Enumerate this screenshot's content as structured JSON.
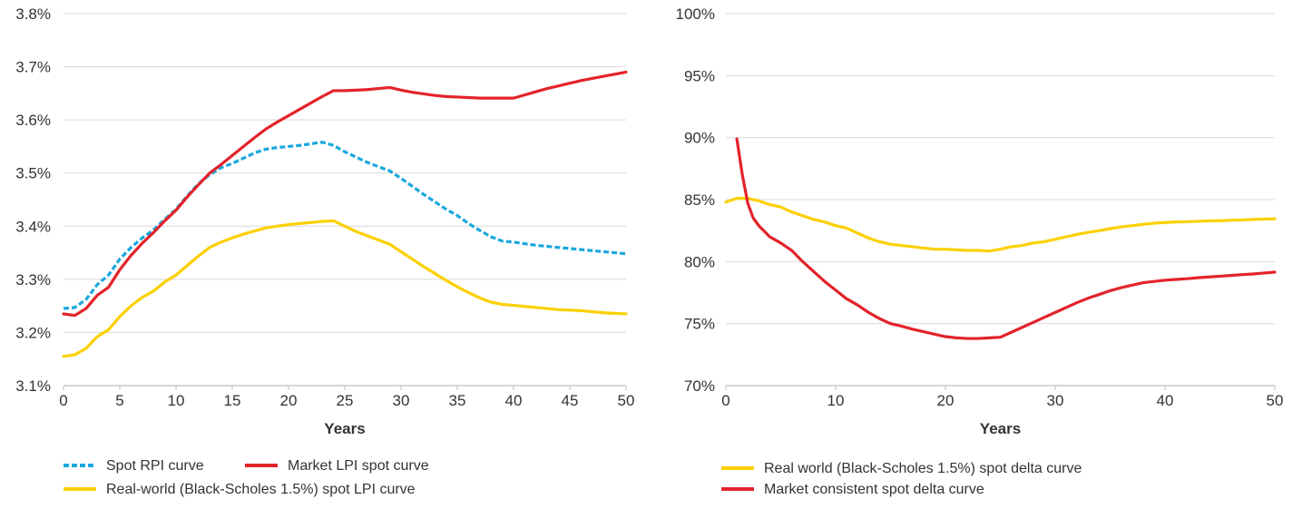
{
  "colors": {
    "rpi": "#1aa7dd",
    "market": "#e3232a",
    "realworld": "#fcd000",
    "grid": "#d9d9d9",
    "axis": "#bfbfbf",
    "text": "#333333"
  },
  "chart_data": [
    {
      "type": "line",
      "xlabel": "Years",
      "ylabel": "",
      "xlim": [
        0,
        50
      ],
      "ylim": [
        3.1,
        3.8
      ],
      "x_ticks": [
        0,
        5,
        10,
        15,
        20,
        25,
        30,
        35,
        40,
        45,
        50
      ],
      "x_tick_labels": [
        "0",
        "5",
        "10",
        "15",
        "20",
        "25",
        "30",
        "35",
        "40",
        "45",
        "50"
      ],
      "y_ticks": [
        3.1,
        3.2,
        3.3,
        3.4,
        3.5,
        3.6,
        3.7,
        3.8
      ],
      "y_tick_labels": [
        "3.1%",
        "3.2%",
        "3.3%",
        "3.4%",
        "3.5%",
        "3.6%",
        "3.7%",
        "3.8%"
      ],
      "grid": "horizontal",
      "legend": "bottom-left",
      "series": [
        {
          "name": "Spot RPI curve",
          "color": "#1aa7dd",
          "style": "dashed",
          "x": [
            0,
            1,
            2,
            3,
            4,
            5,
            6,
            7,
            8,
            9,
            10,
            11,
            12,
            13,
            14,
            15,
            16,
            17,
            18,
            19,
            20,
            21,
            22,
            23,
            24,
            25,
            26,
            27,
            28,
            29,
            30,
            31,
            32,
            33,
            34,
            35,
            36,
            37,
            38,
            39,
            40,
            41,
            42,
            43,
            44,
            45,
            46,
            47,
            48,
            49,
            50
          ],
          "values": [
            3.245,
            3.247,
            3.262,
            3.29,
            3.308,
            3.338,
            3.36,
            3.378,
            3.393,
            3.413,
            3.432,
            3.457,
            3.48,
            3.497,
            3.51,
            3.518,
            3.528,
            3.538,
            3.545,
            3.548,
            3.55,
            3.552,
            3.555,
            3.558,
            3.552,
            3.54,
            3.53,
            3.52,
            3.512,
            3.504,
            3.49,
            3.475,
            3.46,
            3.446,
            3.432,
            3.42,
            3.405,
            3.392,
            3.38,
            3.372,
            3.37,
            3.367,
            3.364,
            3.362,
            3.36,
            3.358,
            3.356,
            3.354,
            3.352,
            3.35,
            3.348
          ]
        },
        {
          "name": "Market LPI spot curve",
          "color": "#e3232a",
          "style": "solid",
          "x": [
            0,
            1,
            2,
            3,
            4,
            5,
            6,
            7,
            8,
            9,
            10,
            11,
            12,
            13,
            14,
            15,
            16,
            17,
            18,
            19,
            20,
            21,
            22,
            23,
            24,
            25,
            26,
            27,
            28,
            29,
            30,
            31,
            32,
            33,
            34,
            35,
            36,
            37,
            38,
            39,
            40,
            41,
            42,
            43,
            44,
            45,
            46,
            47,
            48,
            49,
            50
          ],
          "values": [
            3.235,
            3.232,
            3.245,
            3.27,
            3.285,
            3.318,
            3.345,
            3.368,
            3.388,
            3.41,
            3.43,
            3.455,
            3.478,
            3.5,
            3.516,
            3.533,
            3.55,
            3.567,
            3.583,
            3.596,
            3.608,
            3.62,
            3.632,
            3.644,
            3.655,
            3.655,
            3.656,
            3.657,
            3.659,
            3.661,
            3.656,
            3.652,
            3.649,
            3.646,
            3.644,
            3.643,
            3.642,
            3.641,
            3.641,
            3.641,
            3.641,
            3.647,
            3.653,
            3.659,
            3.664,
            3.669,
            3.674,
            3.678,
            3.682,
            3.686,
            3.69
          ]
        },
        {
          "name": "Real-world (Black-Scholes 1.5%) spot LPI curve",
          "color": "#fcd000",
          "style": "solid",
          "x": [
            0,
            1,
            2,
            3,
            4,
            5,
            6,
            7,
            8,
            9,
            10,
            11,
            12,
            13,
            14,
            15,
            16,
            17,
            18,
            19,
            20,
            21,
            22,
            23,
            24,
            25,
            26,
            27,
            28,
            29,
            30,
            31,
            32,
            33,
            34,
            35,
            36,
            37,
            38,
            39,
            40,
            41,
            42,
            43,
            44,
            45,
            46,
            47,
            48,
            49,
            50
          ],
          "values": [
            3.155,
            3.158,
            3.17,
            3.192,
            3.205,
            3.23,
            3.25,
            3.266,
            3.278,
            3.295,
            3.308,
            3.326,
            3.344,
            3.36,
            3.37,
            3.378,
            3.385,
            3.391,
            3.397,
            3.4,
            3.403,
            3.405,
            3.407,
            3.409,
            3.41,
            3.4,
            3.39,
            3.382,
            3.374,
            3.366,
            3.352,
            3.338,
            3.324,
            3.311,
            3.298,
            3.286,
            3.275,
            3.265,
            3.257,
            3.253,
            3.251,
            3.249,
            3.247,
            3.245,
            3.243,
            3.242,
            3.241,
            3.239,
            3.237,
            3.236,
            3.235
          ]
        }
      ]
    },
    {
      "type": "line",
      "xlabel": "Years",
      "ylabel": "",
      "xlim": [
        0,
        50
      ],
      "ylim": [
        70,
        100
      ],
      "x_ticks": [
        0,
        10,
        20,
        30,
        40,
        50
      ],
      "x_tick_labels": [
        "0",
        "10",
        "20",
        "30",
        "40",
        "50"
      ],
      "y_ticks": [
        70,
        75,
        80,
        85,
        90,
        95,
        100
      ],
      "y_tick_labels": [
        "70%",
        "75%",
        "80%",
        "85%",
        "90%",
        "95%",
        "100%"
      ],
      "grid": "horizontal",
      "legend": "bottom-left",
      "series": [
        {
          "name": "Real world (Black-Scholes 1.5%) spot delta curve",
          "color": "#fcd000",
          "style": "solid",
          "x": [
            0,
            1,
            2,
            3,
            4,
            5,
            6,
            7,
            8,
            9,
            10,
            11,
            12,
            13,
            14,
            15,
            16,
            17,
            18,
            19,
            20,
            21,
            22,
            23,
            24,
            25,
            26,
            27,
            28,
            29,
            30,
            31,
            32,
            33,
            34,
            35,
            36,
            37,
            38,
            39,
            40,
            41,
            42,
            43,
            44,
            45,
            46,
            47,
            48,
            49,
            50
          ],
          "values": [
            84.8,
            85.1,
            85.1,
            84.9,
            84.6,
            84.4,
            84.0,
            83.7,
            83.4,
            83.2,
            82.9,
            82.7,
            82.3,
            81.9,
            81.6,
            81.4,
            81.3,
            81.2,
            81.1,
            81.0,
            81.0,
            80.95,
            80.9,
            80.9,
            80.85,
            81.0,
            81.2,
            81.3,
            81.5,
            81.6,
            81.8,
            82.0,
            82.2,
            82.35,
            82.5,
            82.65,
            82.8,
            82.9,
            83.0,
            83.1,
            83.15,
            83.2,
            83.22,
            83.25,
            83.28,
            83.3,
            83.33,
            83.36,
            83.4,
            83.43,
            83.45
          ]
        },
        {
          "name": "Market consistent spot delta curve",
          "color": "#e3232a",
          "style": "solid",
          "x": [
            1,
            1.5,
            2,
            2.5,
            3,
            4,
            5,
            6,
            7,
            8,
            9,
            10,
            11,
            12,
            13,
            14,
            15,
            16,
            17,
            18,
            19,
            20,
            21,
            22,
            23,
            24,
            25,
            26,
            27,
            28,
            29,
            30,
            31,
            32,
            33,
            34,
            35,
            36,
            37,
            38,
            39,
            40,
            41,
            42,
            43,
            44,
            45,
            46,
            47,
            48,
            49,
            50
          ],
          "values": [
            89.9,
            87.0,
            84.7,
            83.5,
            82.9,
            82.0,
            81.5,
            80.9,
            80.0,
            79.2,
            78.4,
            77.7,
            77.0,
            76.5,
            75.9,
            75.4,
            75.0,
            74.8,
            74.55,
            74.35,
            74.15,
            73.95,
            73.85,
            73.8,
            73.8,
            73.85,
            73.9,
            74.3,
            74.7,
            75.1,
            75.5,
            75.9,
            76.3,
            76.7,
            77.05,
            77.35,
            77.65,
            77.9,
            78.1,
            78.3,
            78.4,
            78.5,
            78.56,
            78.62,
            78.7,
            78.76,
            78.82,
            78.88,
            78.95,
            79.0,
            79.08,
            79.15
          ]
        }
      ]
    }
  ]
}
